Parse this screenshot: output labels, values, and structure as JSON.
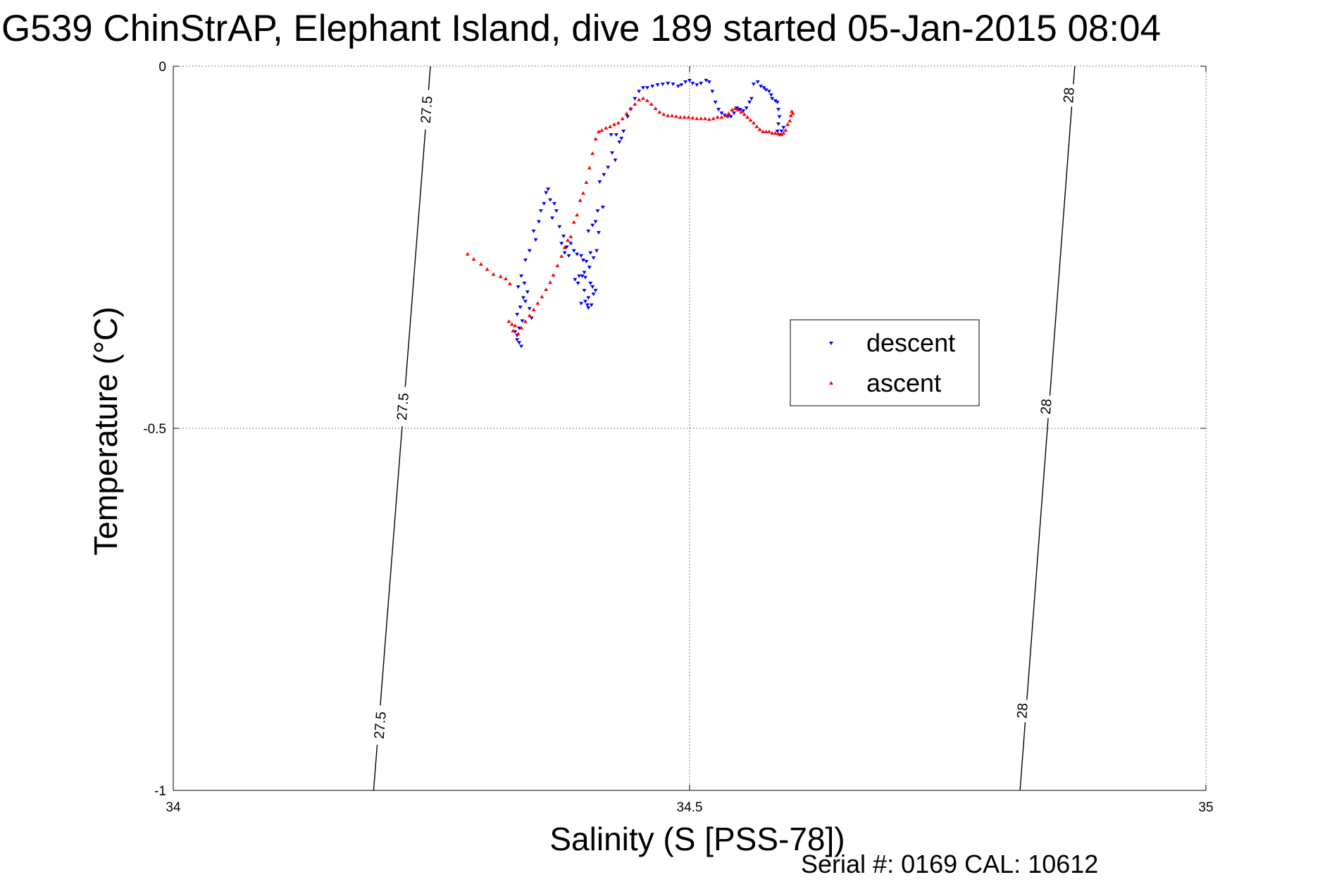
{
  "chart_data": {
    "type": "scatter",
    "title": "G539 ChinStrAP, Elephant Island, dive 189 started 05-Jan-2015 08:04",
    "xlabel": "Salinity (S [PSS-78])",
    "ylabel": "Temperature (°C)",
    "xlim": [
      34,
      35
    ],
    "ylim": [
      -1,
      0
    ],
    "x_ticks": [
      34,
      34.5,
      35
    ],
    "x_tick_labels": [
      "34",
      "34.5",
      "35"
    ],
    "y_ticks": [
      0,
      -0.5,
      -1
    ],
    "y_tick_labels": [
      "0",
      "-0.5",
      "-1"
    ],
    "grid": true,
    "legend_position": "center-right",
    "footer": "Serial #: 0169 CAL: 10612",
    "isopycnals": [
      {
        "label": "27.5",
        "x_at_top": 34.249,
        "x_at_bottom": 34.194,
        "label_positions": [
          {
            "x": 34.245,
            "y": -0.06
          },
          {
            "x": 34.222,
            "y": -0.47
          },
          {
            "x": 34.2,
            "y": -0.91
          }
        ]
      },
      {
        "label": "28",
        "x_at_top": 34.873,
        "x_at_bottom": 34.82,
        "label_positions": [
          {
            "x": 34.867,
            "y": -0.04
          },
          {
            "x": 34.845,
            "y": -0.47
          },
          {
            "x": 34.822,
            "y": -0.89
          }
        ]
      }
    ],
    "series": [
      {
        "name": "descent",
        "color": "#0000ff",
        "marker": "triangle-down",
        "points": [
          [
            34.337,
            -0.387
          ],
          [
            34.335,
            -0.382
          ],
          [
            34.333,
            -0.378
          ],
          [
            34.333,
            -0.372
          ],
          [
            34.331,
            -0.367
          ],
          [
            34.335,
            -0.362
          ],
          [
            34.338,
            -0.352
          ],
          [
            34.333,
            -0.343
          ],
          [
            34.336,
            -0.333
          ],
          [
            34.339,
            -0.32
          ],
          [
            34.334,
            -0.305
          ],
          [
            34.337,
            -0.29
          ],
          [
            34.34,
            -0.3
          ],
          [
            34.343,
            -0.312
          ],
          [
            34.341,
            -0.325
          ],
          [
            34.345,
            -0.335
          ],
          [
            34.347,
            -0.348
          ],
          [
            34.341,
            -0.268
          ],
          [
            34.345,
            -0.255
          ],
          [
            34.351,
            -0.24
          ],
          [
            34.349,
            -0.228
          ],
          [
            34.354,
            -0.215
          ],
          [
            34.356,
            -0.2
          ],
          [
            34.359,
            -0.19
          ],
          [
            34.361,
            -0.175
          ],
          [
            34.365,
            -0.185
          ],
          [
            34.363,
            -0.17
          ],
          [
            34.369,
            -0.19
          ],
          [
            34.371,
            -0.2
          ],
          [
            34.367,
            -0.21
          ],
          [
            34.374,
            -0.222
          ],
          [
            34.378,
            -0.235
          ],
          [
            34.376,
            -0.245
          ],
          [
            34.381,
            -0.25
          ],
          [
            34.385,
            -0.245
          ],
          [
            34.388,
            -0.255
          ],
          [
            34.383,
            -0.262
          ],
          [
            34.379,
            -0.258
          ],
          [
            34.391,
            -0.26
          ],
          [
            34.395,
            -0.262
          ],
          [
            34.397,
            -0.268
          ],
          [
            34.4,
            -0.27
          ],
          [
            34.403,
            -0.278
          ],
          [
            34.398,
            -0.285
          ],
          [
            34.393,
            -0.29
          ],
          [
            34.399,
            -0.292
          ],
          [
            34.404,
            -0.258
          ],
          [
            34.406,
            -0.22
          ],
          [
            34.402,
            -0.228
          ],
          [
            34.398,
            -0.31
          ],
          [
            34.402,
            -0.32
          ],
          [
            34.404,
            -0.3
          ],
          [
            34.406,
            -0.305
          ],
          [
            34.409,
            -0.31
          ],
          [
            34.407,
            -0.315
          ],
          [
            34.401,
            -0.33
          ],
          [
            34.399,
            -0.325
          ],
          [
            34.405,
            -0.33
          ],
          [
            34.402,
            -0.334
          ],
          [
            34.395,
            -0.328
          ],
          [
            34.392,
            -0.3
          ],
          [
            34.389,
            -0.295
          ],
          [
            34.396,
            -0.29
          ],
          [
            34.407,
            -0.265
          ],
          [
            34.41,
            -0.255
          ],
          [
            34.412,
            -0.23
          ],
          [
            34.409,
            -0.215
          ],
          [
            34.411,
            -0.2
          ],
          [
            34.416,
            -0.195
          ],
          [
            34.413,
            -0.16
          ],
          [
            34.417,
            -0.15
          ],
          [
            34.421,
            -0.14
          ],
          [
            34.425,
            -0.12
          ],
          [
            34.428,
            -0.13
          ],
          [
            34.424,
            -0.095
          ],
          [
            34.429,
            -0.095
          ],
          [
            34.432,
            -0.105
          ],
          [
            34.434,
            -0.1
          ],
          [
            34.436,
            -0.09
          ],
          [
            34.44,
            -0.07
          ],
          [
            34.443,
            -0.06
          ],
          [
            34.447,
            -0.045
          ],
          [
            34.451,
            -0.035
          ],
          [
            34.455,
            -0.03
          ],
          [
            34.459,
            -0.03
          ],
          [
            34.464,
            -0.028
          ],
          [
            34.469,
            -0.026
          ],
          [
            34.474,
            -0.025
          ],
          [
            34.479,
            -0.024
          ],
          [
            34.484,
            -0.025
          ],
          [
            34.489,
            -0.028
          ],
          [
            34.492,
            -0.026
          ],
          [
            34.496,
            -0.022
          ],
          [
            34.5,
            -0.02
          ],
          [
            34.503,
            -0.024
          ],
          [
            34.507,
            -0.026
          ],
          [
            34.511,
            -0.024
          ],
          [
            34.516,
            -0.02
          ],
          [
            34.519,
            -0.022
          ],
          [
            34.522,
            -0.035
          ],
          [
            34.525,
            -0.05
          ],
          [
            34.528,
            -0.06
          ],
          [
            34.531,
            -0.065
          ],
          [
            34.534,
            -0.068
          ],
          [
            34.537,
            -0.07
          ],
          [
            34.54,
            -0.07
          ],
          [
            34.543,
            -0.065
          ],
          [
            34.546,
            -0.058
          ],
          [
            34.549,
            -0.06
          ],
          [
            34.552,
            -0.062
          ],
          [
            34.555,
            -0.058
          ],
          [
            34.558,
            -0.05
          ],
          [
            34.56,
            -0.045
          ],
          [
            34.562,
            -0.025
          ],
          [
            34.566,
            -0.022
          ],
          [
            34.569,
            -0.028
          ],
          [
            34.572,
            -0.03
          ],
          [
            34.574,
            -0.033
          ],
          [
            34.577,
            -0.035
          ],
          [
            34.579,
            -0.04
          ],
          [
            34.58,
            -0.045
          ],
          [
            34.583,
            -0.048
          ],
          [
            34.585,
            -0.05
          ],
          [
            34.586,
            -0.06
          ],
          [
            34.587,
            -0.07
          ],
          [
            34.586,
            -0.08
          ],
          [
            34.585,
            -0.09
          ],
          [
            34.587,
            -0.095
          ],
          [
            34.589,
            -0.09
          ],
          [
            34.591,
            -0.085
          ]
        ]
      },
      {
        "name": "ascent",
        "color": "#ff0000",
        "marker": "triangle-up",
        "points": [
          [
            34.285,
            -0.259
          ],
          [
            34.291,
            -0.266
          ],
          [
            34.298,
            -0.273
          ],
          [
            34.304,
            -0.28
          ],
          [
            34.31,
            -0.287
          ],
          [
            34.317,
            -0.29
          ],
          [
            34.322,
            -0.293
          ],
          [
            34.326,
            -0.3
          ],
          [
            34.325,
            -0.352
          ],
          [
            34.328,
            -0.356
          ],
          [
            34.331,
            -0.358
          ],
          [
            34.329,
            -0.365
          ],
          [
            34.334,
            -0.369
          ],
          [
            34.337,
            -0.361
          ],
          [
            34.341,
            -0.352
          ],
          [
            34.345,
            -0.344
          ],
          [
            34.349,
            -0.336
          ],
          [
            34.353,
            -0.327
          ],
          [
            34.357,
            -0.318
          ],
          [
            34.361,
            -0.308
          ],
          [
            34.365,
            -0.298
          ],
          [
            34.368,
            -0.288
          ],
          [
            34.372,
            -0.275
          ],
          [
            34.376,
            -0.262
          ],
          [
            34.379,
            -0.25
          ],
          [
            34.382,
            -0.24
          ],
          [
            34.385,
            -0.235
          ],
          [
            34.388,
            -0.215
          ],
          [
            34.391,
            -0.205
          ],
          [
            34.394,
            -0.185
          ],
          [
            34.397,
            -0.175
          ],
          [
            34.4,
            -0.16
          ],
          [
            34.403,
            -0.14
          ],
          [
            34.406,
            -0.12
          ],
          [
            34.409,
            -0.1
          ],
          [
            34.412,
            -0.09
          ],
          [
            34.415,
            -0.088
          ],
          [
            34.419,
            -0.085
          ],
          [
            34.423,
            -0.083
          ],
          [
            34.427,
            -0.08
          ],
          [
            34.431,
            -0.078
          ],
          [
            34.435,
            -0.072
          ],
          [
            34.439,
            -0.065
          ],
          [
            34.443,
            -0.058
          ],
          [
            34.447,
            -0.052
          ],
          [
            34.451,
            -0.046
          ],
          [
            34.455,
            -0.044
          ],
          [
            34.459,
            -0.047
          ],
          [
            34.463,
            -0.052
          ],
          [
            34.467,
            -0.058
          ],
          [
            34.471,
            -0.063
          ],
          [
            34.475,
            -0.066
          ],
          [
            34.479,
            -0.068
          ],
          [
            34.483,
            -0.068
          ],
          [
            34.487,
            -0.069
          ],
          [
            34.491,
            -0.07
          ],
          [
            34.495,
            -0.07
          ],
          [
            34.499,
            -0.07
          ],
          [
            34.503,
            -0.071
          ],
          [
            34.507,
            -0.072
          ],
          [
            34.511,
            -0.072
          ],
          [
            34.515,
            -0.072
          ],
          [
            34.519,
            -0.073
          ],
          [
            34.523,
            -0.072
          ],
          [
            34.527,
            -0.07
          ],
          [
            34.531,
            -0.07
          ],
          [
            34.535,
            -0.068
          ],
          [
            34.538,
            -0.065
          ],
          [
            34.541,
            -0.06
          ],
          [
            34.544,
            -0.058
          ],
          [
            34.547,
            -0.06
          ],
          [
            34.55,
            -0.063
          ],
          [
            34.553,
            -0.066
          ],
          [
            34.556,
            -0.07
          ],
          [
            34.559,
            -0.074
          ],
          [
            34.562,
            -0.078
          ],
          [
            34.565,
            -0.083
          ],
          [
            34.568,
            -0.087
          ],
          [
            34.571,
            -0.09
          ],
          [
            34.574,
            -0.09
          ],
          [
            34.577,
            -0.09
          ],
          [
            34.58,
            -0.092
          ],
          [
            34.583,
            -0.092
          ],
          [
            34.586,
            -0.093
          ],
          [
            34.589,
            -0.094
          ],
          [
            34.591,
            -0.092
          ],
          [
            34.593,
            -0.088
          ],
          [
            34.595,
            -0.08
          ],
          [
            34.597,
            -0.075
          ],
          [
            34.598,
            -0.068
          ],
          [
            34.599,
            -0.062
          ],
          [
            34.6,
            -0.065
          ]
        ]
      }
    ]
  }
}
